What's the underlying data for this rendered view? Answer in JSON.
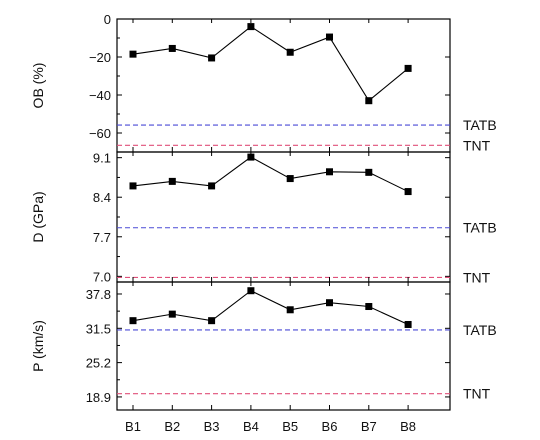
{
  "chart_data": {
    "type": "line",
    "categories": [
      "B1",
      "B2",
      "B3",
      "B4",
      "B5",
      "B6",
      "B7",
      "B8"
    ],
    "xlabel": "",
    "panels": [
      {
        "ylabel": "OB (%)",
        "ylim": [
          -70,
          0
        ],
        "yticks": [
          0,
          -20,
          -40,
          -60
        ],
        "ytick_labels": [
          "0",
          "−20",
          "−40",
          "−60"
        ],
        "values": [
          -18.5,
          -15.5,
          -20.5,
          -4,
          -17.5,
          -9.5,
          -43,
          -26
        ],
        "references": [
          {
            "name": "TATB",
            "value": -55.8,
            "color": "#4a4ad6"
          },
          {
            "name": "TNT",
            "value": -66.5,
            "color": "#e0507a"
          }
        ]
      },
      {
        "ylabel": "D (GPa)",
        "ylim": [
          6.9,
          9.2
        ],
        "yticks": [
          9.1,
          8.4,
          7.7,
          7.0
        ],
        "ytick_labels": [
          "9.1",
          "8.4",
          "7.7",
          "7.0"
        ],
        "values": [
          8.6,
          8.68,
          8.6,
          9.11,
          8.73,
          8.85,
          8.84,
          8.5
        ],
        "references": [
          {
            "name": "TATB",
            "value": 7.86,
            "color": "#4a4ad6"
          },
          {
            "name": "TNT",
            "value": 6.98,
            "color": "#e0507a"
          }
        ]
      },
      {
        "ylabel": "P (km/s)",
        "ylim": [
          16.5,
          40
        ],
        "yticks": [
          37.8,
          31.5,
          25.2,
          18.9
        ],
        "ytick_labels": [
          "37.8",
          "31.5",
          "25.2",
          "18.9"
        ],
        "values": [
          32.9,
          34.1,
          32.9,
          38.4,
          34.9,
          36.2,
          35.5,
          32.2
        ],
        "references": [
          {
            "name": "TATB",
            "value": 31.2,
            "color": "#4a4ad6"
          },
          {
            "name": "TNT",
            "value": 19.5,
            "color": "#e0507a"
          }
        ]
      }
    ],
    "grid": false,
    "legend": "reference labels at right"
  }
}
